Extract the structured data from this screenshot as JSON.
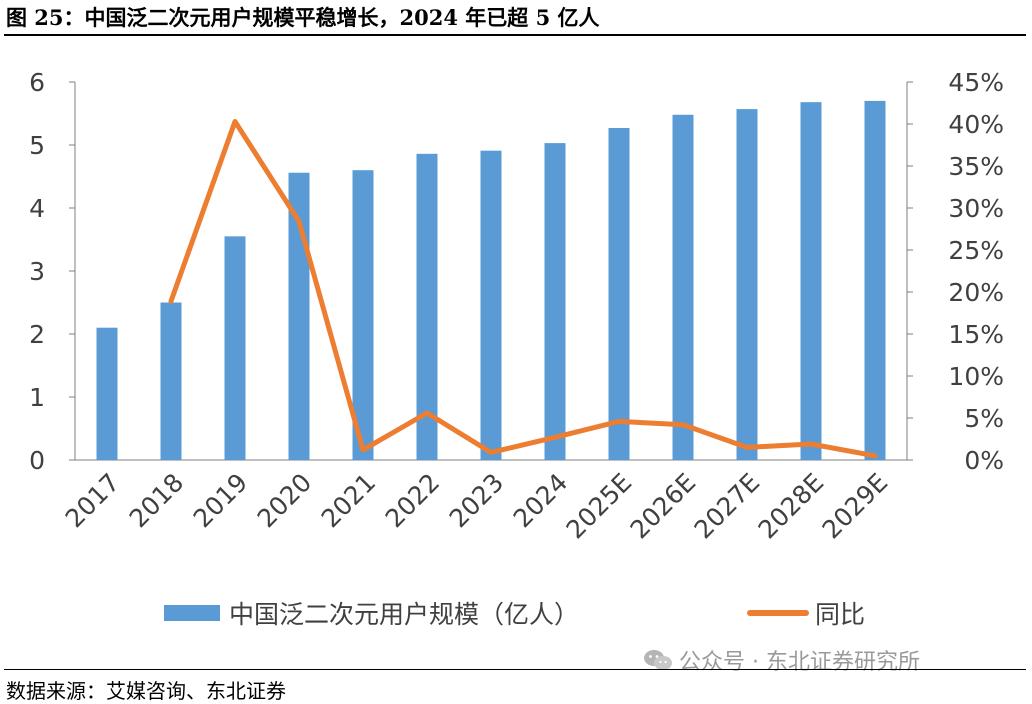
{
  "figure": {
    "title": "图 25：中国泛二次元用户规模平稳增长，2024 年已超 5 亿人",
    "source": "数据来源：艾媒咨询、东北证券",
    "watermark": "公众号 · 东北证券研究所",
    "watermark_icon": "wechat-icon"
  },
  "chart_data": {
    "type": "bar",
    "categories": [
      "2017",
      "2018",
      "2019",
      "2020",
      "2021",
      "2022",
      "2023",
      "2024",
      "2025E",
      "2026E",
      "2027E",
      "2028E",
      "2029E"
    ],
    "series": [
      {
        "name": "中国泛二次元用户规模（亿人）",
        "type": "bar",
        "axis": "left",
        "color": "#5B9BD5",
        "values": [
          2.1,
          2.5,
          3.55,
          4.56,
          4.6,
          4.86,
          4.91,
          5.03,
          5.27,
          5.48,
          5.57,
          5.68,
          5.7
        ]
      },
      {
        "name": "同比",
        "type": "line",
        "axis": "right",
        "color": "#ED7D31",
        "values": [
          null,
          18.9,
          40.3,
          28.4,
          1.2,
          5.6,
          0.9,
          2.7,
          4.6,
          4.2,
          1.5,
          1.9,
          0.5
        ]
      }
    ],
    "y_left": {
      "min": 0,
      "max": 6,
      "ticks": [
        "0",
        "1",
        "2",
        "3",
        "4",
        "5",
        "6"
      ]
    },
    "y_right": {
      "min": 0,
      "max": 45,
      "ticks": [
        "0%",
        "5%",
        "10%",
        "15%",
        "20%",
        "25%",
        "30%",
        "35%",
        "40%",
        "45%"
      ]
    },
    "grid": false,
    "legend_position": "bottom"
  }
}
